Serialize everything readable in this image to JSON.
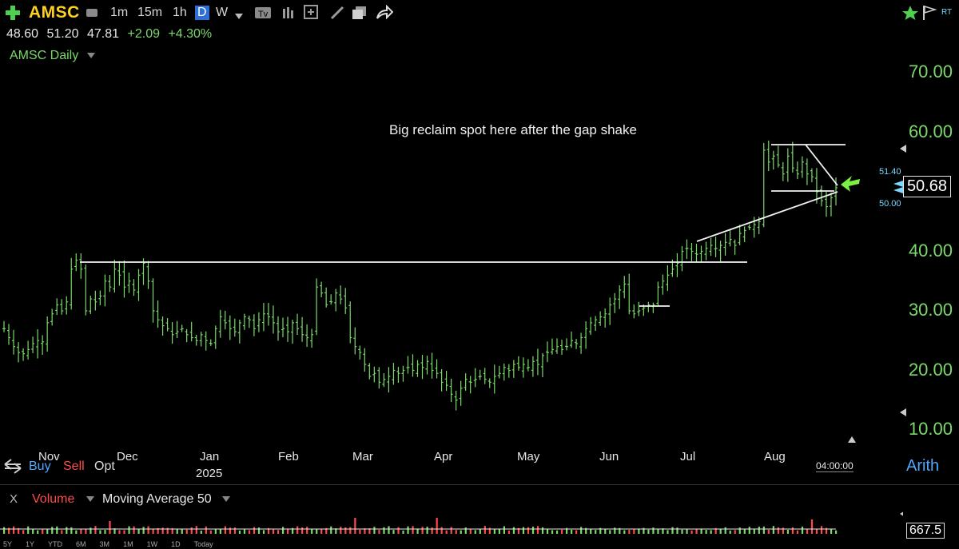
{
  "toolbar": {
    "symbol": "AMSC",
    "timeframes": [
      "1m",
      "15m",
      "1h",
      "D",
      "W"
    ],
    "active_timeframe": "D",
    "rt_label": "RT"
  },
  "quote": {
    "open": "48.60",
    "high": "51.20",
    "low": "47.81",
    "change": "+2.09",
    "change_pct": "+4.30%"
  },
  "chart": {
    "title": "AMSC Daily",
    "annotation": "Big reclaim spot here after the gap shake",
    "scale_mode": "Arith",
    "time_readout": "04:00:00"
  },
  "trade": {
    "buy": "Buy",
    "sell": "Sell",
    "opt": "Opt"
  },
  "volume_panel": {
    "close_label": "X",
    "volume_label": "Volume",
    "ma_label": "Moving Average 50",
    "last_value": "667.5"
  },
  "range_buttons": [
    "5Y",
    "1Y",
    "YTD",
    "6M",
    "3M",
    "1M",
    "1W",
    "1D",
    "Today"
  ],
  "colors": {
    "up": "#7bd96a",
    "down": "#ff4a4a",
    "symbol": "#ffd21f",
    "accent": "#2d6fd6"
  },
  "chart_data": {
    "type": "ohlc",
    "title": "AMSC Daily",
    "y_ticks": [
      "10.00",
      "20.00",
      "30.00",
      "40.00",
      "50.00",
      "60.00",
      "70.00"
    ],
    "ylim": [
      8,
      74
    ],
    "x_months": [
      "Nov",
      "Dec",
      "Jan",
      "Feb",
      "Mar",
      "Apr",
      "May",
      "Jun",
      "Jul",
      "Aug"
    ],
    "year_label": "2025",
    "last_price": "50.68",
    "range_marks": [
      "51.40",
      "50.00"
    ],
    "close_series": [
      27,
      25.5,
      24,
      23,
      22.8,
      23.5,
      24.5,
      25,
      24.8,
      28,
      29.5,
      31,
      30,
      31.5,
      37,
      38.5,
      37,
      30,
      32,
      31.5,
      32.5,
      35,
      34,
      37,
      36,
      34,
      35,
      33.5,
      36,
      38,
      35,
      30,
      28.5,
      27.5,
      27,
      26,
      26.5,
      27,
      26,
      25.5,
      25,
      26,
      25,
      24.5,
      27,
      29,
      28,
      27,
      26.5,
      28,
      29,
      28.5,
      27,
      28.5,
      29.5,
      29,
      28,
      26.5,
      27,
      26.5,
      28,
      27,
      26,
      25.5,
      26,
      34,
      33,
      31,
      31.5,
      33,
      32,
      30.5,
      25.5,
      24,
      23,
      21,
      19,
      19.5,
      18,
      18.5,
      19,
      20,
      19.5,
      20,
      20.5,
      20,
      21,
      20.5,
      21.5,
      20,
      19.5,
      18,
      17.5,
      16,
      15,
      17,
      18.5,
      18,
      18.5,
      19,
      18.5,
      18,
      19,
      19.5,
      20.5,
      20,
      21,
      20.5,
      21,
      20.5,
      21.5,
      21,
      22.5,
      23,
      23.5,
      24,
      23.5,
      24,
      25,
      24.5,
      25.5,
      27,
      28,
      28.5,
      29,
      29.5,
      31,
      32,
      33.5,
      34.5,
      30,
      29.5,
      30,
      30.5,
      31,
      31,
      34,
      35,
      36,
      37,
      38,
      40,
      40.5,
      40,
      39.5,
      40,
      40.5,
      41,
      40.5,
      41,
      41.5,
      42,
      41,
      43,
      43.5,
      44,
      44.5,
      45,
      57,
      55,
      56,
      54.5,
      53,
      56,
      54,
      53,
      55,
      53,
      52.5,
      50,
      48.5,
      47.5,
      49,
      50.68
    ],
    "volume_note": "daily volume bars with 50-day moving average"
  }
}
